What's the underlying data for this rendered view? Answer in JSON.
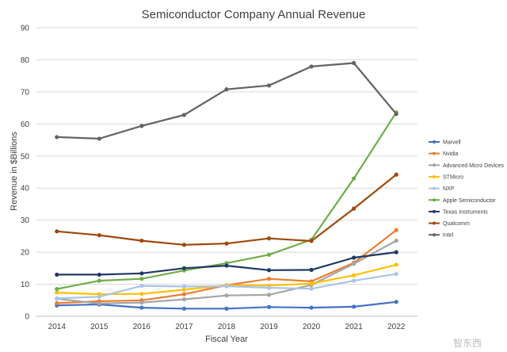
{
  "chart_data": {
    "type": "line",
    "title": "Semiconductor Company Annual Revenue",
    "xlabel": "Fiscal Year",
    "ylabel": "Revenue in $Billions",
    "ylim": [
      0,
      90
    ],
    "yticks": [
      0,
      10,
      20,
      30,
      40,
      50,
      60,
      70,
      80,
      90
    ],
    "grid": true,
    "legend_position": "right",
    "categories": [
      "2014",
      "2015",
      "2016",
      "2017",
      "2018",
      "2019",
      "2020",
      "2021",
      "2022"
    ],
    "series": [
      {
        "name": "Marvell",
        "color": "#4472C4",
        "values": [
          3.4,
          3.7,
          2.7,
          2.4,
          2.4,
          2.9,
          2.7,
          3.0,
          4.5
        ]
      },
      {
        "name": "Nvidia",
        "color": "#ED7D31",
        "values": [
          4.1,
          4.7,
          5.0,
          6.9,
          9.7,
          11.7,
          10.9,
          16.7,
          26.9
        ]
      },
      {
        "name": "Advanced Micro Devices",
        "color": "#A5A5A5",
        "values": [
          5.5,
          4.0,
          4.3,
          5.3,
          6.5,
          6.7,
          9.8,
          16.4,
          23.6
        ]
      },
      {
        "name": "STMicro",
        "color": "#FFC000",
        "values": [
          7.4,
          6.9,
          7.0,
          8.3,
          9.7,
          9.6,
          10.2,
          12.8,
          16.1
        ]
      },
      {
        "name": "NXP",
        "color": "#A9C4E8",
        "values": [
          5.6,
          6.1,
          9.5,
          9.3,
          9.4,
          8.9,
          8.6,
          11.1,
          13.2
        ]
      },
      {
        "name": "Apple Semiconductor",
        "color": "#70AD47",
        "values": [
          8.5,
          11.1,
          11.7,
          14.3,
          16.6,
          19.2,
          23.9,
          43.0,
          63.6
        ]
      },
      {
        "name": "Texas Instruments",
        "color": "#203864",
        "values": [
          13.0,
          13.0,
          13.4,
          15.0,
          15.8,
          14.4,
          14.5,
          18.3,
          20.0
        ]
      },
      {
        "name": "Qualcomm",
        "color": "#9E480E",
        "values": [
          26.5,
          25.3,
          23.6,
          22.3,
          22.7,
          24.3,
          23.5,
          33.6,
          44.2
        ]
      },
      {
        "name": "Intel",
        "color": "#636363",
        "values": [
          55.9,
          55.4,
          59.4,
          62.8,
          70.8,
          72.0,
          77.9,
          79.0,
          63.1
        ]
      }
    ]
  },
  "watermark": "智东西"
}
